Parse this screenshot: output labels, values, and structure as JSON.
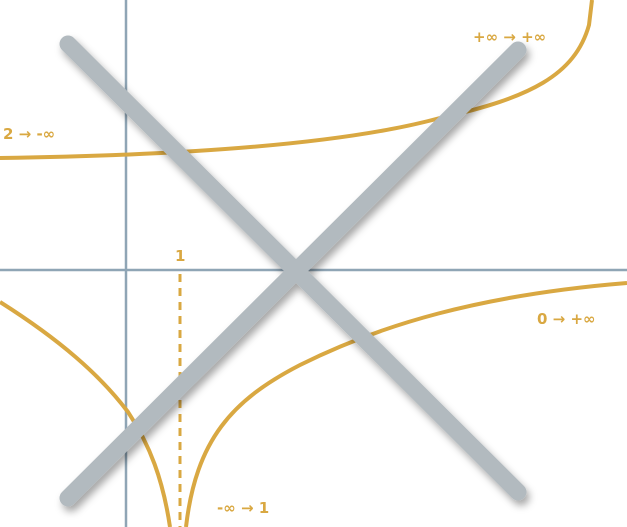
{
  "colors": {
    "axis": "#8fa5b5",
    "curve": "#d9a842",
    "cross": "#b2babf",
    "background": "#ffffff"
  },
  "labels": {
    "top_right": "+∞ → +∞",
    "left_upper": "2 → -∞",
    "right_middle": "0 → +∞",
    "bottom": "-∞ → 1",
    "asymptote_tick": "1"
  },
  "elements": {
    "cross_out": "cross-out-icon"
  }
}
